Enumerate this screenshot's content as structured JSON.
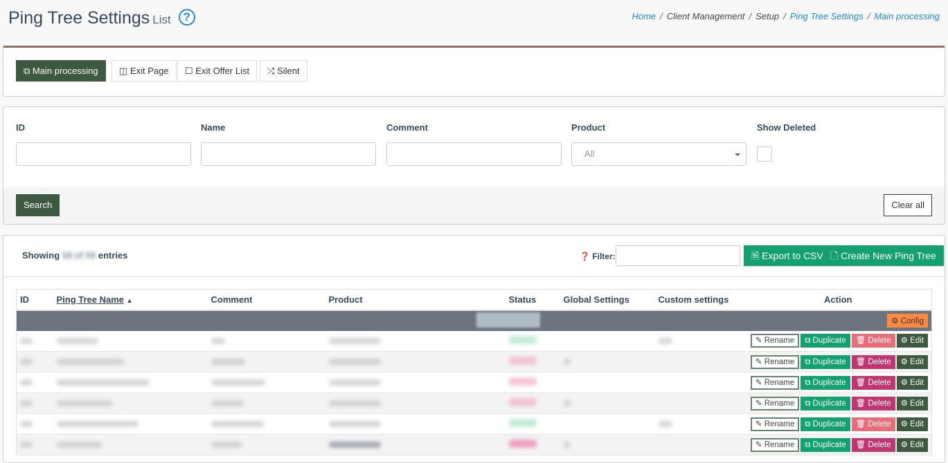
{
  "header": {
    "title": "Ping Tree Settings",
    "subtitle": "List",
    "help_icon": "question-circle-icon"
  },
  "breadcrumb": [
    {
      "label": "Home",
      "link": true
    },
    {
      "label": "Client Management",
      "link": false
    },
    {
      "label": "Setup",
      "link": false
    },
    {
      "label": "Ping Tree Settings",
      "link": true
    },
    {
      "label": "Main processing",
      "link": true
    }
  ],
  "tabs": [
    {
      "label": "Main processing",
      "icon": "external-link-icon",
      "active": true
    },
    {
      "label": "Exit Page",
      "icon": "columns-icon"
    },
    {
      "label": "Exit Offer List",
      "icon": "square-icon"
    },
    {
      "label": "Silent",
      "icon": "shuffle-icon"
    }
  ],
  "filters": {
    "id_label": "ID",
    "name_label": "Name",
    "comment_label": "Comment",
    "product_label": "Product",
    "product_value": "All",
    "show_deleted_label": "Show Deleted",
    "search_label": "Search",
    "clear_label": "Clear all"
  },
  "list": {
    "showing_prefix": "Showing",
    "showing_count": "58 of 58",
    "showing_suffix": "entries",
    "filter_label": "Filter:",
    "export_label": "Export to CSV",
    "create_label": "Create New Ping Tree",
    "columns": [
      "ID",
      "Ping Tree Name",
      "Comment",
      "Product",
      "Status",
      "Global Settings",
      "Custom settings",
      "Action"
    ],
    "config_label": "Config",
    "actions": {
      "rename": "Rename",
      "duplicate": "Duplicate",
      "delete": "Delete",
      "edit": "Edit"
    },
    "rows_delete_disabled": [
      true,
      false,
      false,
      false,
      true,
      false
    ]
  },
  "colors": {
    "primary_dark": "#3d5a40",
    "success": "#13a26f",
    "danger": "#c2366f",
    "danger_light": "#e96d78",
    "warning": "#fd8a3f",
    "link": "#1e88e5"
  }
}
